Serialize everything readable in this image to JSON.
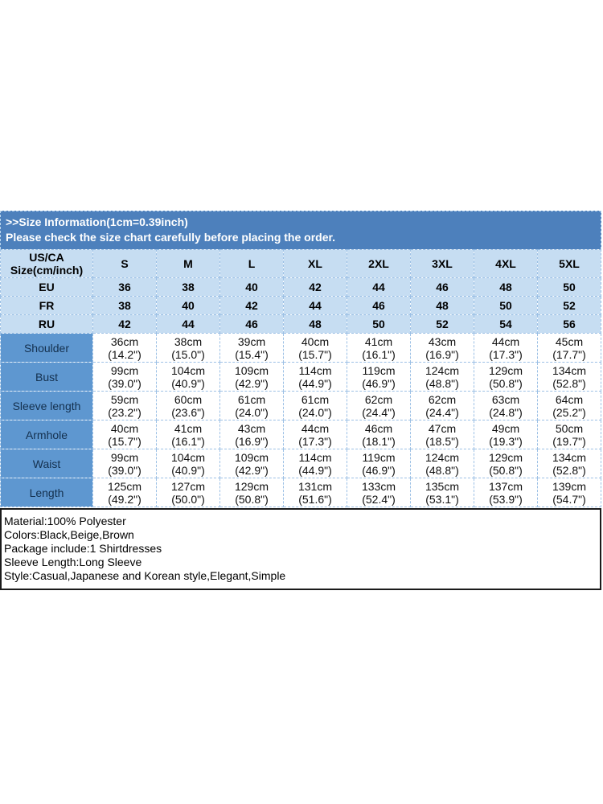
{
  "banner": {
    "title": ">>Size Information(1cm=0.39inch)",
    "subtitle": "Please check the size chart carefully before placing the order."
  },
  "size_table": {
    "corner_label_line1": "US/CA",
    "corner_label_line2": "Size(cm/inch)",
    "size_headers": [
      "S",
      "M",
      "L",
      "XL",
      "2XL",
      "3XL",
      "4XL",
      "5XL"
    ],
    "region_rows": [
      {
        "label": "EU",
        "values": [
          "36",
          "38",
          "40",
          "42",
          "44",
          "46",
          "48",
          "50"
        ]
      },
      {
        "label": "FR",
        "values": [
          "38",
          "40",
          "42",
          "44",
          "46",
          "48",
          "50",
          "52"
        ]
      },
      {
        "label": "RU",
        "values": [
          "42",
          "44",
          "46",
          "48",
          "50",
          "52",
          "54",
          "56"
        ]
      }
    ],
    "measurement_rows": [
      {
        "label": "Shoulder",
        "values_cm": [
          "36cm",
          "38cm",
          "39cm",
          "40cm",
          "41cm",
          "43cm",
          "44cm",
          "45cm"
        ],
        "values_inch": [
          "(14.2\")",
          "(15.0\")",
          "(15.4\")",
          "(15.7\")",
          "(16.1\")",
          "(16.9\")",
          "(17.3\")",
          "(17.7\")"
        ]
      },
      {
        "label": "Bust",
        "values_cm": [
          "99cm",
          "104cm",
          "109cm",
          "114cm",
          "119cm",
          "124cm",
          "129cm",
          "134cm"
        ],
        "values_inch": [
          "(39.0\")",
          "(40.9\")",
          "(42.9\")",
          "(44.9\")",
          "(46.9\")",
          "(48.8\")",
          "(50.8\")",
          "(52.8\")"
        ]
      },
      {
        "label": "Sleeve length",
        "values_cm": [
          "59cm",
          "60cm",
          "61cm",
          "61cm",
          "62cm",
          "62cm",
          "63cm",
          "64cm"
        ],
        "values_inch": [
          "(23.2\")",
          "(23.6\")",
          "(24.0\")",
          "(24.0\")",
          "(24.4\")",
          "(24.4\")",
          "(24.8\")",
          "(25.2\")"
        ]
      },
      {
        "label": "Armhole",
        "values_cm": [
          "40cm",
          "41cm",
          "43cm",
          "44cm",
          "46cm",
          "47cm",
          "49cm",
          "50cm"
        ],
        "values_inch": [
          "(15.7\")",
          "(16.1\")",
          "(16.9\")",
          "(17.3\")",
          "(18.1\")",
          "(18.5\")",
          "(19.3\")",
          "(19.7\")"
        ]
      },
      {
        "label": "Waist",
        "values_cm": [
          "99cm",
          "104cm",
          "109cm",
          "114cm",
          "119cm",
          "124cm",
          "129cm",
          "134cm"
        ],
        "values_inch": [
          "(39.0\")",
          "(40.9\")",
          "(42.9\")",
          "(44.9\")",
          "(46.9\")",
          "(48.8\")",
          "(50.8\")",
          "(52.8\")"
        ]
      },
      {
        "label": "Length",
        "values_cm": [
          "125cm",
          "127cm",
          "129cm",
          "131cm",
          "133cm",
          "135cm",
          "137cm",
          "139cm"
        ],
        "values_inch": [
          "(49.2\")",
          "(50.0\")",
          "(50.8\")",
          "(51.6\")",
          "(52.4\")",
          "(53.1\")",
          "(53.9\")",
          "(54.7\")"
        ]
      }
    ]
  },
  "product_info": {
    "lines": [
      "Material:100% Polyester",
      "Colors:Black,Beige,Brown",
      "Package include:1 Shirtdresses",
      "Sleeve Length:Long Sleeve",
      "Style:Casual,Japanese and Korean style,Elegant,Simple"
    ]
  },
  "colors": {
    "banner_bg": "#4d80bc",
    "header_cell_bg": "#c6ddf2",
    "label_cell_bg": "#5e97d0",
    "label_text": "#14304e",
    "banner_text": "#ffffff",
    "info_box_border": "#1b1b1b",
    "cell_border": "#9cc0e5"
  }
}
